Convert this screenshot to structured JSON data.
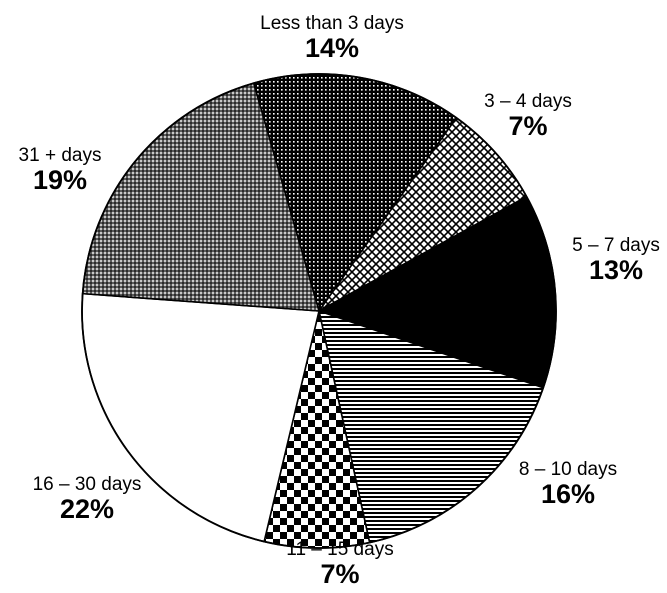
{
  "chart_data": {
    "type": "pie",
    "title": "",
    "slices": [
      {
        "label": "Less than 3 days",
        "value": 14,
        "value_label": "14%",
        "fill": "dots"
      },
      {
        "label": "3 – 4 days",
        "value": 7,
        "value_label": "7%",
        "fill": "crosshatch"
      },
      {
        "label": "5 – 7 days",
        "value": 13,
        "value_label": "13%",
        "fill": "solid-black"
      },
      {
        "label": "8 – 10 days",
        "value": 16,
        "value_label": "16%",
        "fill": "horizontal-lines"
      },
      {
        "label": "11 – 15 days",
        "value": 7,
        "value_label": "7%",
        "fill": "checkerboard"
      },
      {
        "label": "16 – 30 days",
        "value": 22,
        "value_label": "22%",
        "fill": "white"
      },
      {
        "label": "31 + days",
        "value": 19,
        "value_label": "19%",
        "fill": "fine-grid"
      }
    ],
    "legend": "none",
    "colors": {
      "ink": "#000000",
      "paper": "#ffffff"
    }
  }
}
